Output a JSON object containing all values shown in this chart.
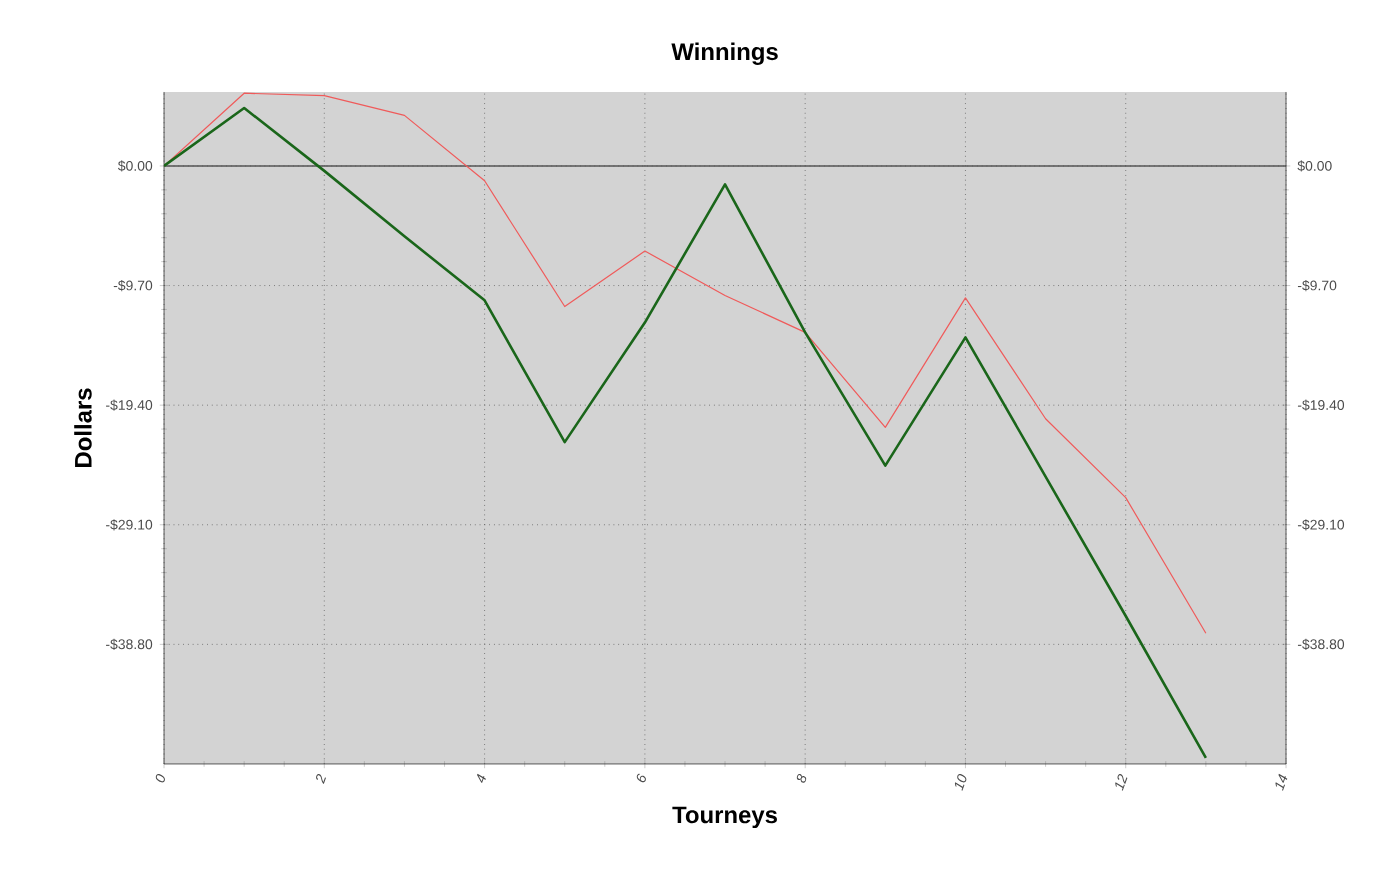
{
  "chart_data": {
    "type": "line",
    "title": "Winnings",
    "xlabel": "Tourneys",
    "ylabel": "Dollars",
    "x": [
      0,
      1,
      2,
      3,
      4,
      5,
      6,
      7,
      8,
      9,
      10,
      11,
      12,
      13
    ],
    "series": [
      {
        "color": "#f05a5a",
        "values": [
          0,
          5.9,
          5.7,
          4.1,
          -1.2,
          -11.4,
          -6.9,
          -10.5,
          -13.5,
          -21.2,
          -10.7,
          -20.5,
          -26.9,
          -37.9
        ]
      },
      {
        "color": "#1a661a",
        "values": [
          0,
          4.7,
          -0.4,
          -5.7,
          -10.9,
          -22.4,
          -12.7,
          -1.5,
          -13.5,
          -24.3,
          -13.9,
          -25.2,
          -36.5,
          -48.0
        ]
      }
    ],
    "xlim": [
      0,
      14
    ],
    "xticks": [
      0,
      2,
      4,
      6,
      8,
      10,
      12,
      14
    ],
    "ylim": [
      -48.5,
      6
    ],
    "yticks": [
      {
        "value": 0,
        "label": "$0.00"
      },
      {
        "value": -9.7,
        "label": "-$9.70"
      },
      {
        "value": -19.4,
        "label": "-$19.40"
      },
      {
        "value": -29.1,
        "label": "-$29.10"
      },
      {
        "value": -38.8,
        "label": "-$38.80"
      }
    ],
    "y2lim": [
      -48.5,
      6
    ],
    "y2ticks": [
      {
        "value": 0,
        "label": "$0.00"
      },
      {
        "value": -9.7,
        "label": "-$9.70"
      },
      {
        "value": -19.4,
        "label": "-$19.40"
      },
      {
        "value": -29.1,
        "label": "-$29.10"
      },
      {
        "value": -38.8,
        "label": "-$38.80"
      }
    ],
    "ref_lines": [
      {
        "axis": "y",
        "value": 0,
        "color": "#555555"
      }
    ],
    "grid": true,
    "legend": false,
    "marker": "none",
    "line_style": "solid"
  }
}
